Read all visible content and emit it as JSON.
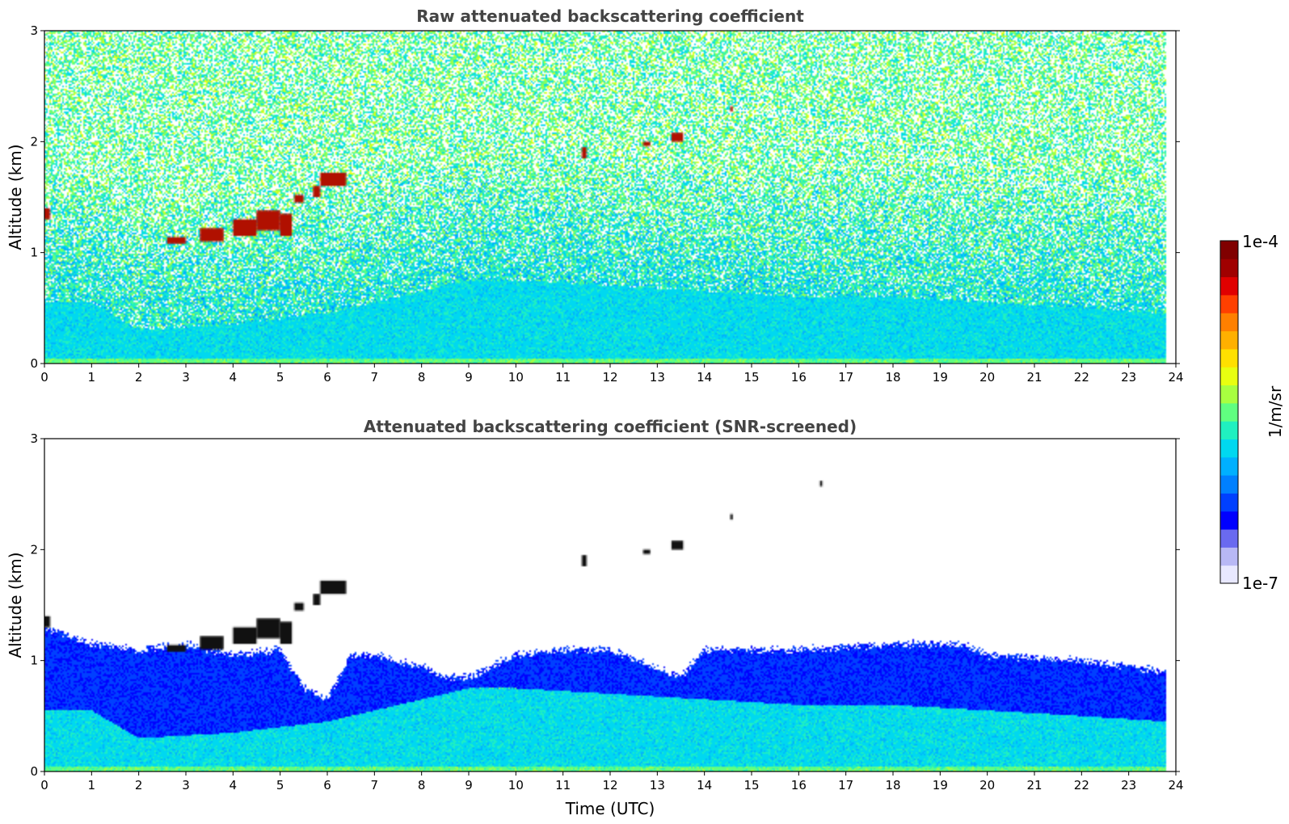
{
  "chart_data": [
    {
      "type": "heatmap",
      "title": "Raw attenuated backscattering coefficient",
      "xlabel": "",
      "ylabel": "Altitude (km)",
      "xlim": [
        0,
        24
      ],
      "ylim": [
        0,
        3
      ],
      "xticks": [
        "0",
        "1",
        "2",
        "3",
        "4",
        "5",
        "6",
        "7",
        "8",
        "9",
        "10",
        "11",
        "12",
        "13",
        "14",
        "15",
        "16",
        "17",
        "18",
        "19",
        "20",
        "21",
        "22",
        "23",
        "24"
      ],
      "yticks": [
        "0",
        "1",
        "2",
        "3"
      ],
      "data_extent_x": [
        0,
        23.8
      ],
      "screened": false,
      "boundary_layer_top_km": [
        {
          "time": 0,
          "alt": 0.55
        },
        {
          "time": 1,
          "alt": 0.55
        },
        {
          "time": 2,
          "alt": 0.3
        },
        {
          "time": 4,
          "alt": 0.35
        },
        {
          "time": 6,
          "alt": 0.45
        },
        {
          "time": 7,
          "alt": 0.55
        },
        {
          "time": 8,
          "alt": 0.65
        },
        {
          "time": 9,
          "alt": 0.75
        },
        {
          "time": 10,
          "alt": 0.75
        },
        {
          "time": 12,
          "alt": 0.7
        },
        {
          "time": 14,
          "alt": 0.65
        },
        {
          "time": 16,
          "alt": 0.6
        },
        {
          "time": 18,
          "alt": 0.6
        },
        {
          "time": 20,
          "alt": 0.55
        },
        {
          "time": 22,
          "alt": 0.5
        },
        {
          "time": 23.8,
          "alt": 0.45
        }
      ],
      "cloud_features": [
        {
          "t0": 0.0,
          "t1": 0.12,
          "alt0": 1.3,
          "alt1": 1.4
        },
        {
          "t0": 2.6,
          "t1": 3.0,
          "alt0": 1.08,
          "alt1": 1.14
        },
        {
          "t0": 3.3,
          "t1": 3.8,
          "alt0": 1.1,
          "alt1": 1.22
        },
        {
          "t0": 4.0,
          "t1": 4.5,
          "alt0": 1.15,
          "alt1": 1.3
        },
        {
          "t0": 4.5,
          "t1": 5.0,
          "alt0": 1.2,
          "alt1": 1.38
        },
        {
          "t0": 5.0,
          "t1": 5.25,
          "alt0": 1.15,
          "alt1": 1.35
        },
        {
          "t0": 5.3,
          "t1": 5.5,
          "alt0": 1.45,
          "alt1": 1.52
        },
        {
          "t0": 5.7,
          "t1": 5.85,
          "alt0": 1.5,
          "alt1": 1.6
        },
        {
          "t0": 5.85,
          "t1": 6.4,
          "alt0": 1.6,
          "alt1": 1.72
        },
        {
          "t0": 11.4,
          "t1": 11.5,
          "alt0": 1.85,
          "alt1": 1.95
        },
        {
          "t0": 12.7,
          "t1": 12.85,
          "alt0": 1.96,
          "alt1": 2.0
        },
        {
          "t0": 13.3,
          "t1": 13.55,
          "alt0": 2.0,
          "alt1": 2.08
        },
        {
          "t0": 14.55,
          "t1": 14.6,
          "alt0": 2.27,
          "alt1": 2.32
        }
      ]
    },
    {
      "type": "heatmap",
      "title": "Attenuated backscattering coefficient (SNR-screened)",
      "xlabel": "Time (UTC)",
      "ylabel": "Altitude (km)",
      "xlim": [
        0,
        24
      ],
      "ylim": [
        0,
        3
      ],
      "xticks": [
        "0",
        "1",
        "2",
        "3",
        "4",
        "5",
        "6",
        "7",
        "8",
        "9",
        "10",
        "11",
        "12",
        "13",
        "14",
        "15",
        "16",
        "17",
        "18",
        "19",
        "20",
        "21",
        "22",
        "23",
        "24"
      ],
      "yticks": [
        "0",
        "1",
        "2",
        "3"
      ],
      "data_extent_x": [
        0,
        23.8
      ],
      "screened": true,
      "boundary_layer_top_km": [
        {
          "time": 0,
          "alt": 0.55
        },
        {
          "time": 1,
          "alt": 0.55
        },
        {
          "time": 2,
          "alt": 0.3
        },
        {
          "time": 4,
          "alt": 0.35
        },
        {
          "time": 6,
          "alt": 0.45
        },
        {
          "time": 7,
          "alt": 0.55
        },
        {
          "time": 8,
          "alt": 0.65
        },
        {
          "time": 9,
          "alt": 0.75
        },
        {
          "time": 10,
          "alt": 0.75
        },
        {
          "time": 12,
          "alt": 0.7
        },
        {
          "time": 14,
          "alt": 0.65
        },
        {
          "time": 16,
          "alt": 0.6
        },
        {
          "time": 18,
          "alt": 0.6
        },
        {
          "time": 20,
          "alt": 0.55
        },
        {
          "time": 22,
          "alt": 0.5
        },
        {
          "time": 23.8,
          "alt": 0.45
        }
      ],
      "valid_top_km": [
        {
          "time": 0,
          "alt": 1.3
        },
        {
          "time": 1,
          "alt": 1.15
        },
        {
          "time": 2,
          "alt": 1.1
        },
        {
          "time": 3,
          "alt": 1.15
        },
        {
          "time": 4,
          "alt": 1.05
        },
        {
          "time": 5,
          "alt": 1.1
        },
        {
          "time": 5.5,
          "alt": 0.75
        },
        {
          "time": 6,
          "alt": 0.65
        },
        {
          "time": 6.5,
          "alt": 1.05
        },
        {
          "time": 7,
          "alt": 1.05
        },
        {
          "time": 8,
          "alt": 0.95
        },
        {
          "time": 8.5,
          "alt": 0.85
        },
        {
          "time": 9,
          "alt": 0.85
        },
        {
          "time": 10,
          "alt": 1.05
        },
        {
          "time": 11,
          "alt": 1.1
        },
        {
          "time": 12,
          "alt": 1.1
        },
        {
          "time": 13.5,
          "alt": 0.85
        },
        {
          "time": 14,
          "alt": 1.1
        },
        {
          "time": 16,
          "alt": 1.1
        },
        {
          "time": 18,
          "alt": 1.15
        },
        {
          "time": 19.5,
          "alt": 1.15
        },
        {
          "time": 20,
          "alt": 1.05
        },
        {
          "time": 22,
          "alt": 1.0
        },
        {
          "time": 23.8,
          "alt": 0.9
        }
      ],
      "cloud_features": [
        {
          "t0": 0.0,
          "t1": 0.12,
          "alt0": 1.3,
          "alt1": 1.4
        },
        {
          "t0": 2.6,
          "t1": 3.0,
          "alt0": 1.08,
          "alt1": 1.14
        },
        {
          "t0": 3.3,
          "t1": 3.8,
          "alt0": 1.1,
          "alt1": 1.22
        },
        {
          "t0": 4.0,
          "t1": 4.5,
          "alt0": 1.15,
          "alt1": 1.3
        },
        {
          "t0": 4.5,
          "t1": 5.0,
          "alt0": 1.2,
          "alt1": 1.38
        },
        {
          "t0": 5.0,
          "t1": 5.25,
          "alt0": 1.15,
          "alt1": 1.35
        },
        {
          "t0": 5.3,
          "t1": 5.5,
          "alt0": 1.45,
          "alt1": 1.52
        },
        {
          "t0": 5.7,
          "t1": 5.85,
          "alt0": 1.5,
          "alt1": 1.6
        },
        {
          "t0": 5.85,
          "t1": 6.4,
          "alt0": 1.6,
          "alt1": 1.72
        },
        {
          "t0": 11.4,
          "t1": 11.5,
          "alt0": 1.85,
          "alt1": 1.95
        },
        {
          "t0": 12.7,
          "t1": 12.85,
          "alt0": 1.96,
          "alt1": 2.0
        },
        {
          "t0": 13.3,
          "t1": 13.55,
          "alt0": 2.0,
          "alt1": 2.08
        },
        {
          "t0": 14.55,
          "t1": 14.6,
          "alt0": 2.27,
          "alt1": 2.32
        },
        {
          "t0": 16.45,
          "t1": 16.5,
          "alt0": 2.57,
          "alt1": 2.62
        }
      ]
    }
  ],
  "colorbar": {
    "label": "1/m/sr",
    "min_label": "1e-7",
    "max_label": "1e-4",
    "scale": "log",
    "min": 1e-07,
    "max": 0.0001,
    "colors": [
      "#e8e8ff",
      "#b8b8f5",
      "#6a6af0",
      "#0000ff",
      "#0040ff",
      "#0080ff",
      "#00b0ff",
      "#00d8f0",
      "#20f0c0",
      "#60ff80",
      "#a8ff40",
      "#e8ff10",
      "#ffe000",
      "#ffb000",
      "#ff8000",
      "#ff4000",
      "#e00000",
      "#a00000",
      "#800000"
    ]
  },
  "colors": {
    "cloud_raw": "#b01000",
    "cloud_screened": "#111111",
    "boundary_layer": "#10b0f0",
    "noise_low": "#1a30f0",
    "noise_high": "#40a8e8"
  }
}
